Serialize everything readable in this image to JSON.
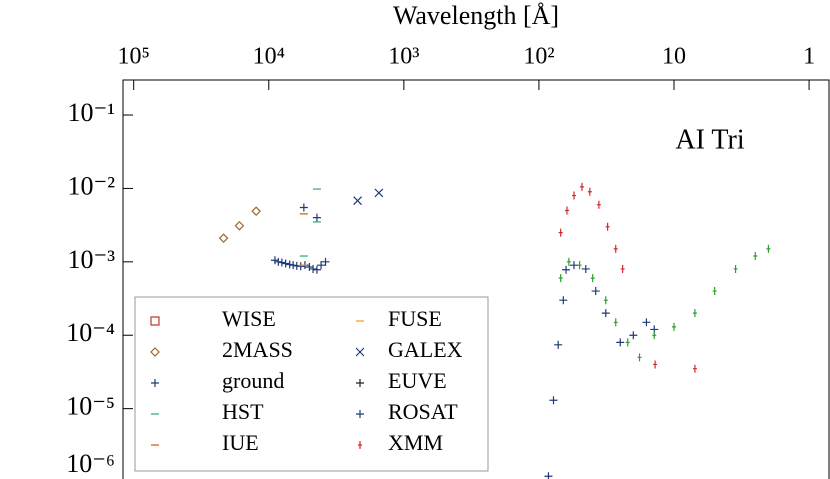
{
  "chart_data": {
    "type": "scatter",
    "x_label": "Wavelength [Å]",
    "annotation": "AI Tri",
    "xscale": "log",
    "yscale": "log",
    "xlim": [
      120000,
      0.7
    ],
    "ylim": [
      1.1e-06,
      0.3
    ],
    "xticks": [
      {
        "value": 100000,
        "label": "10⁵"
      },
      {
        "value": 10000,
        "label": "10⁴"
      },
      {
        "value": 1000,
        "label": "10³"
      },
      {
        "value": 100,
        "label": "10²"
      },
      10,
      1
    ],
    "yticks": [
      {
        "value": 0.1,
        "label": "10⁻¹"
      },
      {
        "value": 0.01,
        "label": "10⁻²"
      },
      {
        "value": 0.001,
        "label": "10⁻³"
      },
      {
        "value": 0.0001,
        "label": "10⁻⁴"
      },
      {
        "value": 1e-05,
        "label": "10⁻⁵"
      },
      {
        "value": 1e-06,
        "label": "10⁻⁶"
      }
    ],
    "legend": "lower left",
    "series": [
      {
        "name": "WISE",
        "color": "#c0392b",
        "marker": "square",
        "x": [],
        "values": []
      },
      {
        "name": "2MASS",
        "color": "#a0652a",
        "marker": "diamond",
        "x": [
          21600,
          16500,
          12400
        ],
        "values": [
          0.0021,
          0.0031,
          0.0049
        ]
      },
      {
        "name": "ground",
        "color": "#1f3a7a",
        "marker": "plus",
        "x": [
          9000,
          8500,
          8000,
          7500,
          7000,
          6600,
          6200,
          5800,
          5400,
          5000,
          4700,
          4400,
          4100,
          3800,
          5500,
          4400
        ],
        "values": [
          0.00105,
          0.001,
          0.00098,
          0.00095,
          0.00092,
          0.0009,
          0.00088,
          0.00087,
          0.0009,
          0.00085,
          0.0008,
          0.00078,
          0.0009,
          0.001,
          0.0055,
          0.004
        ]
      },
      {
        "name": "HST",
        "color": "#2aa876",
        "marker": "dash",
        "x": [
          5500,
          4400,
          4400
        ],
        "values": [
          0.0012,
          0.0098,
          0.0035
        ]
      },
      {
        "name": "IUE",
        "color": "#d35400",
        "marker": "dash",
        "x": [
          5500
        ],
        "values": [
          0.0045
        ]
      },
      {
        "name": "FUSE",
        "color": "#f39c12",
        "marker": "dash",
        "x": [
          5600
        ],
        "values": [
          0.0009
        ]
      },
      {
        "name": "GALEX",
        "color": "#1f3a7a",
        "marker": "x",
        "x": [
          2200,
          1530
        ],
        "values": [
          0.0068,
          0.0087
        ]
      },
      {
        "name": "EUVE",
        "color": "#222222",
        "marker": "plus",
        "x": [],
        "values": []
      },
      {
        "name": "ROSAT",
        "color": "#1f3a7a",
        "marker": "plus",
        "x": [
          85,
          78,
          72,
          66,
          63,
          55,
          45,
          38,
          32,
          25,
          20,
          16,
          14
        ],
        "values": [
          1.2e-06,
          1.3e-05,
          7.4e-05,
          0.0003,
          0.00078,
          0.0009,
          0.0008,
          0.0004,
          0.0002,
          8e-05,
          0.0001,
          0.00015,
          0.00012
        ]
      },
      {
        "name": "XMM",
        "color": "#d62728",
        "marker": "tick",
        "x": [
          69,
          62,
          55,
          48,
          42,
          36,
          31,
          27,
          24,
          13.8,
          7.0,
          69,
          60,
          50,
          40,
          32,
          27,
          22,
          18,
          14,
          10,
          7,
          5,
          3.5,
          2.5,
          2
        ],
        "values": [
          0.0025,
          0.005,
          0.008,
          0.0105,
          0.009,
          0.006,
          0.003,
          0.0015,
          0.0008,
          4e-05,
          3.5e-05,
          0.0006,
          0.001,
          0.0009,
          0.0006,
          0.0003,
          0.00015,
          8e-05,
          5e-05,
          0.0001,
          0.00013,
          0.0002,
          0.0004,
          0.0008,
          0.0012,
          0.0015
        ],
        "colors": [
          "#d62728",
          "#d62728",
          "#d62728",
          "#d62728",
          "#d62728",
          "#d62728",
          "#d62728",
          "#d62728",
          "#d62728",
          "#d62728",
          "#d62728",
          "#2ca02c",
          "#2ca02c",
          "#2ca02c",
          "#2ca02c",
          "#2ca02c",
          "#2ca02c",
          "#2ca02c",
          "#2ca02c",
          "#2ca02c",
          "#2ca02c",
          "#2ca02c",
          "#2ca02c",
          "#2ca02c",
          "#2ca02c",
          "#2ca02c"
        ]
      }
    ]
  }
}
